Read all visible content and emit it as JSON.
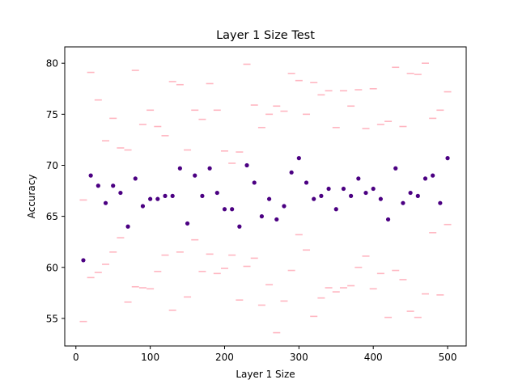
{
  "chart_data": {
    "type": "scatter",
    "title": "Layer 1 Size Test",
    "xlabel": "Layer 1 Size",
    "ylabel": "Accuracy",
    "xlim": [
      -15,
      525
    ],
    "ylim": [
      52.3,
      81.6
    ],
    "xticks": [
      0,
      100,
      200,
      300,
      400,
      500
    ],
    "yticks": [
      55,
      60,
      65,
      70,
      75,
      80
    ],
    "grid": false,
    "colors": {
      "points": "#4b0082",
      "bounds": "#ffb6c1"
    },
    "x": [
      10,
      20,
      30,
      40,
      50,
      60,
      70,
      80,
      90,
      100,
      110,
      120,
      130,
      140,
      150,
      160,
      170,
      180,
      190,
      200,
      210,
      220,
      230,
      240,
      250,
      260,
      270,
      280,
      290,
      300,
      310,
      320,
      330,
      340,
      350,
      360,
      370,
      380,
      390,
      400,
      410,
      420,
      430,
      440,
      450,
      460,
      470,
      480,
      490,
      500
    ],
    "series": [
      {
        "values": [
          60.7,
          69.0,
          68.0,
          66.3,
          68.0,
          67.3,
          64.0,
          68.7,
          66.0,
          66.7,
          66.7,
          67.0,
          67.0,
          69.7,
          64.3,
          69.0,
          67.0,
          69.7,
          67.3,
          65.7,
          65.7,
          64.0,
          70.0,
          68.3,
          65.0,
          66.7,
          64.7,
          66.0,
          69.3,
          70.7,
          68.3,
          66.7,
          67.0,
          67.7,
          65.7,
          67.7,
          67.0,
          68.7,
          67.3,
          67.7,
          66.7,
          64.7,
          69.7,
          66.3,
          67.3,
          67.0,
          68.7,
          69.0,
          66.3,
          70.7
        ]
      },
      {
        "values": [
          66.6,
          79.1,
          76.4,
          72.4,
          74.6,
          71.7,
          71.5,
          79.3,
          74.0,
          75.4,
          73.8,
          72.9,
          78.2,
          77.9,
          71.5,
          75.4,
          74.5,
          78.0,
          75.4,
          71.4,
          70.2,
          71.3,
          79.9,
          75.9,
          73.7,
          75.0,
          75.8,
          75.3,
          79.0,
          78.3,
          75.0,
          78.1,
          76.9,
          77.3,
          73.7,
          77.3,
          75.8,
          77.4,
          73.6,
          77.5,
          74.0,
          74.3,
          79.6,
          73.8,
          79.0,
          78.9,
          80.0,
          74.6,
          75.4,
          77.2
        ]
      },
      {
        "values": [
          54.7,
          59.0,
          59.5,
          60.3,
          61.5,
          62.9,
          56.6,
          58.1,
          58.0,
          57.9,
          59.6,
          61.2,
          55.8,
          61.5,
          57.1,
          62.7,
          59.6,
          61.3,
          59.4,
          59.9,
          61.2,
          56.8,
          60.1,
          60.9,
          56.3,
          58.3,
          53.6,
          56.7,
          59.7,
          63.2,
          61.7,
          55.2,
          57.0,
          58.0,
          57.6,
          58.0,
          58.2,
          60.0,
          61.1,
          57.9,
          59.4,
          55.1,
          59.7,
          58.8,
          55.7,
          55.1,
          57.4,
          63.4,
          57.3,
          64.2
        ]
      }
    ]
  }
}
